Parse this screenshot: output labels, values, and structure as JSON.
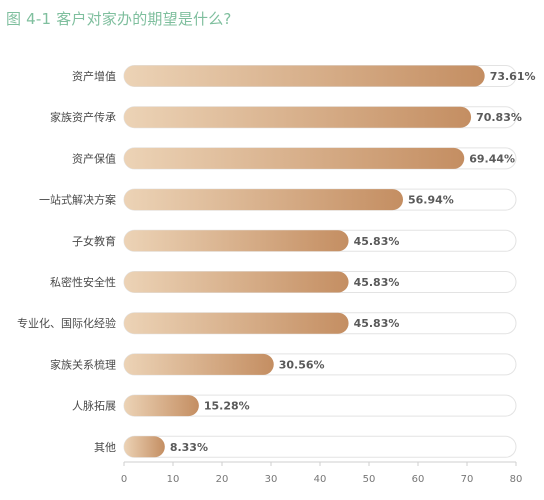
{
  "title": "图 4-1 客户对家办的期望是什么?",
  "colors": {
    "title": "#7fbf9e",
    "bar_start": "#ecd3b6",
    "bar_end": "#c48e62",
    "track": "#ffffff",
    "track_border": "#e3e3e3",
    "axis": "#cfcfcf"
  },
  "chart_data": {
    "type": "bar",
    "orientation": "horizontal",
    "categories": [
      "资产增值",
      "家族资产传承",
      "资产保值",
      "一站式解决方案",
      "子女教育",
      "私密性安全性",
      "专业化、国际化经验",
      "家族关系梳理",
      "人脉拓展",
      "其他"
    ],
    "values": [
      73.61,
      70.83,
      69.44,
      56.94,
      45.83,
      45.83,
      45.83,
      30.56,
      15.28,
      8.33
    ],
    "labels": [
      "73.61%",
      "70.83%",
      "69.44%",
      "56.94%",
      "45.83%",
      "45.83%",
      "45.83%",
      "30.56%",
      "15.28%",
      "8.33%"
    ],
    "xlim": [
      0,
      80
    ],
    "xticks": [
      "0",
      "10",
      "20",
      "30",
      "40",
      "50",
      "60",
      "70",
      "80"
    ],
    "xlabel": "",
    "ylabel": "",
    "grid": false,
    "legend": "none"
  }
}
